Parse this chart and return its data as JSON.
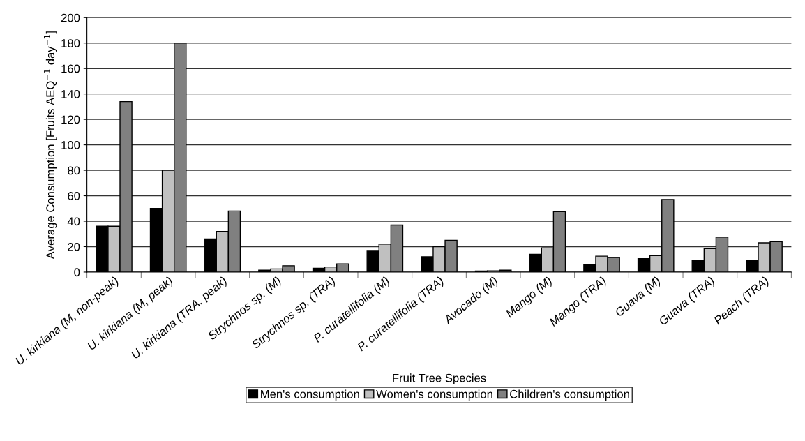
{
  "chart_data": {
    "type": "bar",
    "xlabel": "Fruit Tree Species",
    "ylabel": "Average Consumption [Fruits AEQ$^{−1}$ day$^{−1}$]",
    "categories": [
      "U. kirkiana (M, non-peak)",
      "U. kirkiana (M, peak)",
      "U. kirkiana (TRA, peak)",
      "Strychnos sp. (M)",
      "Strychnos sp. (TRA)",
      "P. curatellifolia (M)",
      "P. curatellifolia (TRA)",
      "Avocado (M)",
      "Mango (M)",
      "Mango (TRA)",
      "Guava (M)",
      "Guava (TRA)",
      "Peach (TRA)"
    ],
    "series": [
      {
        "name": "Men's consumption",
        "color": "#000000",
        "values": [
          36,
          50,
          26,
          1.5,
          3,
          17,
          12,
          0.8,
          14,
          6,
          10.5,
          9,
          9
        ]
      },
      {
        "name": "Women's consumption",
        "color": "#c0c0c0",
        "values": [
          36,
          80,
          32,
          2.5,
          4,
          22,
          20,
          1,
          19,
          12.5,
          13,
          18.5,
          23
        ]
      },
      {
        "name": "Children's consumption",
        "color": "#808080",
        "values": [
          134,
          180,
          48,
          5,
          6.5,
          37,
          25,
          1.5,
          47.5,
          11.5,
          57,
          27.5,
          24
        ]
      }
    ],
    "ylim": [
      0,
      200
    ],
    "yticks": [
      0,
      20,
      40,
      60,
      80,
      100,
      120,
      140,
      160,
      180,
      200
    ],
    "grid": "y",
    "legend": "bottom"
  }
}
